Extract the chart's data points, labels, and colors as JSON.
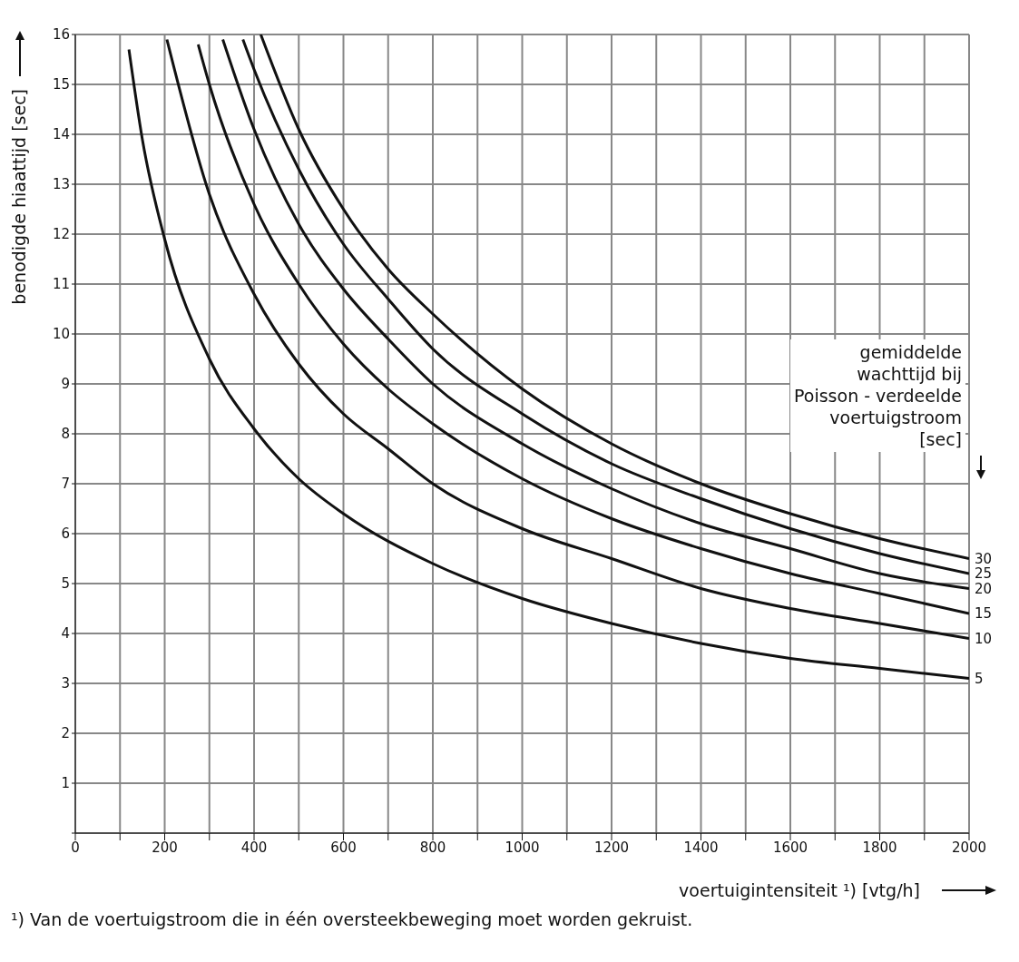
{
  "chart_data": {
    "type": "line",
    "ylabel": "benodigde hiaattijd [sec]",
    "xlabel": "voertuigintensiteit ¹) [vtg/h]",
    "legend_title": "gemiddelde\nwachttijd bij\nPoisson - verdeelde\nvoertuigstroom\n[sec]",
    "annotations": [
      "¹) Van de voertuigstroom die in één oversteekbeweging moet worden gekruist."
    ],
    "xlim": [
      0,
      2000
    ],
    "ylim": [
      0,
      16
    ],
    "xticks": [
      0,
      {
        "value": 100,
        "label": null
      },
      200,
      {
        "value": 300,
        "label": null
      },
      400,
      {
        "value": 500,
        "label": null
      },
      600,
      {
        "value": 700,
        "label": null
      },
      800,
      {
        "value": 900,
        "label": null
      },
      1000,
      {
        "value": 1100,
        "label": null
      },
      1200,
      {
        "value": 1300,
        "label": null
      },
      1400,
      {
        "value": 1500,
        "label": null
      },
      1600,
      {
        "value": 1700,
        "label": null
      },
      1800,
      {
        "value": 1900,
        "label": null
      },
      2000
    ],
    "yticks": [
      {
        "value": 0,
        "label": null
      },
      1,
      2,
      3,
      4,
      5,
      6,
      7,
      8,
      9,
      10,
      11,
      12,
      13,
      14,
      15,
      16
    ],
    "grid": true,
    "marker": "none",
    "line_style": "solid",
    "series": [
      {
        "name": "5",
        "color": "#111111",
        "x": [
          120,
          150,
          200,
          300,
          400,
          500,
          600,
          800,
          1000,
          1200,
          1400,
          1600,
          1800,
          2000
        ],
        "values": [
          15.7,
          13.9,
          11.9,
          9.5,
          8.1,
          7.1,
          6.4,
          5.4,
          4.7,
          4.2,
          3.8,
          3.5,
          3.3,
          3.1
        ]
      },
      {
        "name": "10",
        "color": "#111111",
        "x": [
          205,
          300,
          400,
          500,
          600,
          700,
          800,
          1000,
          1200,
          1400,
          1600,
          1800,
          2000
        ],
        "values": [
          15.9,
          12.8,
          10.8,
          9.4,
          8.4,
          7.7,
          7.0,
          6.1,
          5.5,
          4.9,
          4.5,
          4.2,
          3.9
        ]
      },
      {
        "name": "15",
        "color": "#111111",
        "x": [
          275,
          300,
          400,
          500,
          600,
          700,
          800,
          1000,
          1200,
          1400,
          1600,
          1800,
          2000
        ],
        "values": [
          15.8,
          15.0,
          12.6,
          11.0,
          9.8,
          8.9,
          8.2,
          7.1,
          6.3,
          5.7,
          5.2,
          4.8,
          4.4
        ]
      },
      {
        "name": "20",
        "color": "#111111",
        "x": [
          330,
          400,
          500,
          600,
          700,
          800,
          1000,
          1200,
          1400,
          1600,
          1800,
          2000
        ],
        "values": [
          15.9,
          14.1,
          12.2,
          10.9,
          9.9,
          9.0,
          7.8,
          6.9,
          6.2,
          5.7,
          5.2,
          4.9
        ]
      },
      {
        "name": "25",
        "color": "#111111",
        "x": [
          375,
          400,
          500,
          600,
          700,
          800,
          1000,
          1200,
          1400,
          1600,
          1800,
          2000
        ],
        "values": [
          15.9,
          15.3,
          13.3,
          11.8,
          10.7,
          9.7,
          8.4,
          7.4,
          6.7,
          6.1,
          5.6,
          5.2
        ]
      },
      {
        "name": "30",
        "color": "#111111",
        "x": [
          415,
          500,
          600,
          700,
          800,
          1000,
          1200,
          1400,
          1600,
          1800,
          2000
        ],
        "values": [
          16.0,
          14.1,
          12.5,
          11.3,
          10.4,
          8.9,
          7.8,
          7.0,
          6.4,
          5.9,
          5.5
        ]
      }
    ]
  }
}
